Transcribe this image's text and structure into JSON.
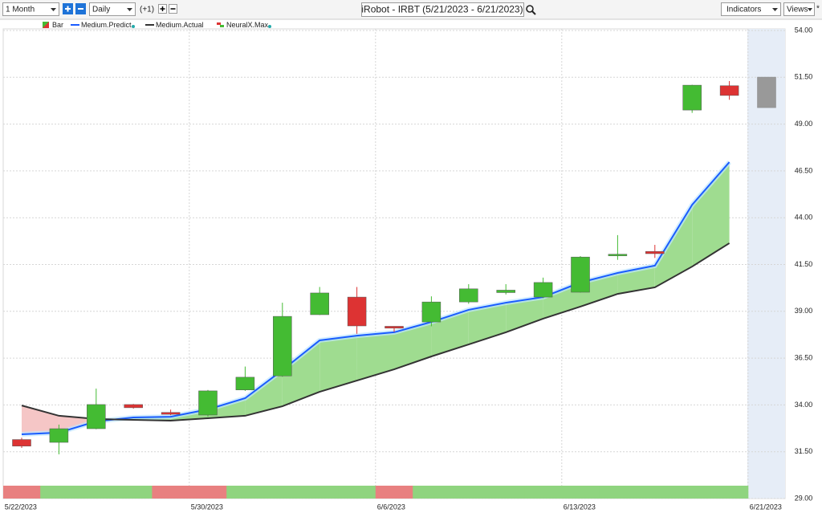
{
  "toolbar": {
    "period": "1 Month",
    "interval": "Daily",
    "offset": "(+1)",
    "title": "iRobot - IRBT (5/21/2023 - 6/21/2023)",
    "indicators": "Indicators",
    "views": "Views",
    "star": "*"
  },
  "chart_data": {
    "type": "candlestick",
    "categories": [
      "5/22/2023",
      null,
      null,
      null,
      null,
      "5/30/2023",
      null,
      null,
      null,
      null,
      "6/6/2023",
      null,
      null,
      null,
      null,
      "6/13/2023",
      null,
      null,
      null,
      null,
      "6/21/2023"
    ],
    "ylim": [
      29,
      54
    ],
    "yticks": [
      {
        "value": 29,
        "label": "29.00"
      },
      {
        "value": 31.5,
        "label": "31.50"
      },
      {
        "value": 34,
        "label": "34.00"
      },
      {
        "value": 36.5,
        "label": "36.50"
      },
      {
        "value": 39,
        "label": "39.00"
      },
      {
        "value": 41.5,
        "label": "41.50"
      },
      {
        "value": 44,
        "label": "44.00"
      },
      {
        "value": 46.5,
        "label": "46.50"
      },
      {
        "value": 49,
        "label": "49.00"
      },
      {
        "value": 51.5,
        "label": "51.50"
      },
      {
        "value": 54,
        "label": "54.00"
      }
    ],
    "grid": true,
    "series": [
      {
        "name": "Bar",
        "open": [
          32.15,
          32.0,
          32.73,
          34.02,
          33.6,
          33.46,
          34.8,
          35.55,
          38.82,
          39.76,
          38.2,
          38.43,
          39.5,
          40.0,
          39.76,
          40.02,
          42.0,
          42.2,
          49.75,
          51.05,
          49.88
        ],
        "high": [
          32.25,
          32.95,
          34.87,
          34.05,
          33.75,
          34.8,
          36.05,
          39.46,
          40.3,
          40.3,
          38.2,
          39.8,
          40.45,
          40.45,
          40.8,
          41.95,
          43.07,
          42.55,
          51.1,
          51.3,
          51.51
        ],
        "low": [
          31.7,
          31.36,
          32.7,
          33.8,
          33.45,
          33.37,
          34.75,
          35.5,
          38.8,
          37.8,
          37.9,
          38.2,
          39.4,
          39.9,
          39.7,
          40.0,
          41.75,
          41.85,
          49.6,
          50.3,
          49.88
        ],
        "close": [
          31.8,
          32.73,
          34.02,
          33.85,
          33.5,
          34.75,
          35.48,
          38.73,
          39.98,
          38.22,
          38.1,
          39.5,
          40.2,
          40.13,
          40.54,
          41.9,
          42.05,
          42.08,
          51.08,
          50.53,
          51.51
        ],
        "colors": [
          "#dd3333",
          "#44bb33",
          "#44bb33",
          "#dd3333",
          "#dd3333",
          "#44bb33",
          "#44bb33",
          "#44bb33",
          "#44bb33",
          "#dd3333",
          "#dd3333",
          "#44bb33",
          "#44bb33",
          "#44bb33",
          "#44bb33",
          "#44bb33",
          "#44bb33",
          "#dd3333",
          "#44bb33",
          "#dd3333",
          "#999999"
        ]
      },
      {
        "name": "Medium.Predict",
        "color": "#1a5cff",
        "values": [
          32.43,
          32.52,
          33.12,
          33.33,
          33.37,
          33.76,
          34.36,
          35.86,
          37.45,
          37.7,
          37.88,
          38.43,
          39.08,
          39.46,
          39.76,
          40.54,
          41.05,
          41.44,
          44.69,
          46.97,
          null
        ]
      },
      {
        "name": "Medium.Actual",
        "color": "#333333",
        "values": [
          33.97,
          33.42,
          33.25,
          33.2,
          33.16,
          33.29,
          33.42,
          33.93,
          34.7,
          35.3,
          35.9,
          36.59,
          37.23,
          37.88,
          38.61,
          39.25,
          39.93,
          40.28,
          41.39,
          42.64,
          null
        ]
      },
      {
        "name": "NeuralX.Max",
        "colors": [
          "#e88080",
          "#8fd47f",
          "#8fd47f",
          "#8fd47f",
          "#e88080",
          "#e88080",
          "#8fd47f",
          "#8fd47f",
          "#8fd47f",
          "#8fd47f",
          "#e88080",
          "#8fd47f",
          "#8fd47f",
          "#8fd47f",
          "#8fd47f",
          "#8fd47f",
          "#8fd47f",
          "#8fd47f",
          "#8fd47f",
          "#8fd47f",
          null
        ]
      }
    ]
  }
}
